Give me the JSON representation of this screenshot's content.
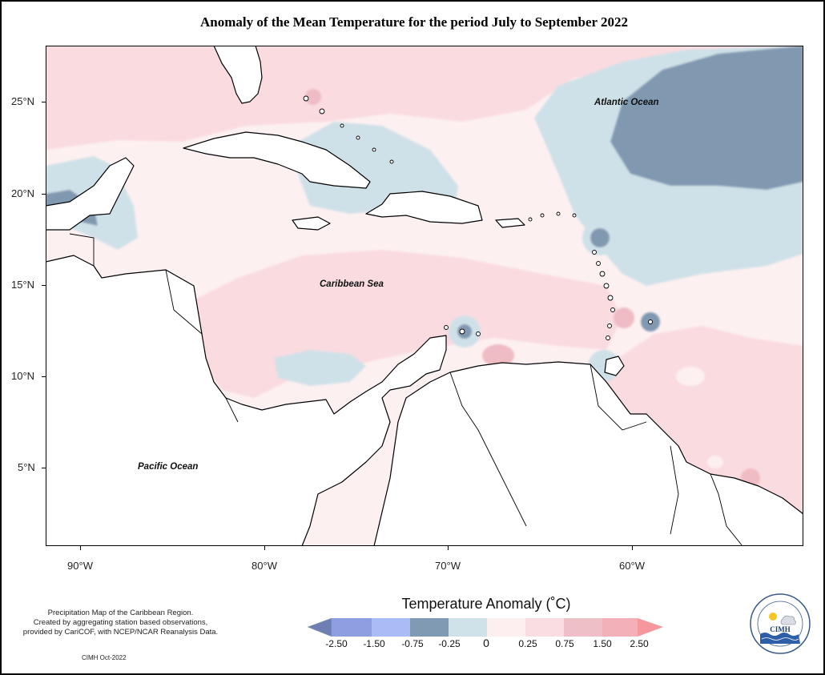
{
  "title": "Anomaly of the Mean Temperature for the period July to September 2022",
  "map": {
    "extent": {
      "lon_min": -92,
      "lon_max": -50.75,
      "lat_min": 0.7,
      "lat_max": 28.1
    },
    "lat_ticks": [
      25,
      20,
      15,
      10,
      5
    ],
    "lat_labels": [
      "25°N",
      "20°N",
      "15°N",
      "10°N",
      "5°N"
    ],
    "lon_ticks": [
      -90,
      -80,
      -70,
      -60
    ],
    "lon_labels": [
      "90°W",
      "80°W",
      "70°W",
      "60°W"
    ],
    "ocean_labels": {
      "atlantic": "Atlantic Ocean",
      "caribbean": "Caribbean Sea",
      "pacific": "Pacific Ocean"
    }
  },
  "legend": {
    "title": "Temperature Anomaly (˚C)",
    "labels": [
      "-2.50",
      "-1.50",
      "-0.75",
      "-0.25",
      "0",
      "0.25",
      "0.75",
      "1.50",
      "2.50"
    ],
    "colors": [
      "#6f7fb4",
      "#8d9fe0",
      "#a9bcf6",
      "#7f9ab2",
      "#cfe2e9",
      "#fdeff0",
      "#f9dde2",
      "#efbfc8",
      "#f6969d"
    ],
    "colors_note": "classes from coldest (left) to warmest (right)"
  },
  "note": {
    "lines": [
      "Precipitation Map of the Caribbean Region.",
      "Created by aggregating station based observations,",
      "provided by CariCOF, with NCEP/NCAR Reanalysis Data."
    ],
    "credit": "CIMH Oct-2022"
  },
  "logo": {
    "text": "CIMH",
    "icon": "cimh-logo"
  },
  "colors": {
    "strong_cool": "#8198b1",
    "cool": "#cfe1e8",
    "neutral": "#fdf0f1",
    "warm": "#f9dbe0",
    "strong_warm": "#efbcc3",
    "land_line": "#000000"
  }
}
